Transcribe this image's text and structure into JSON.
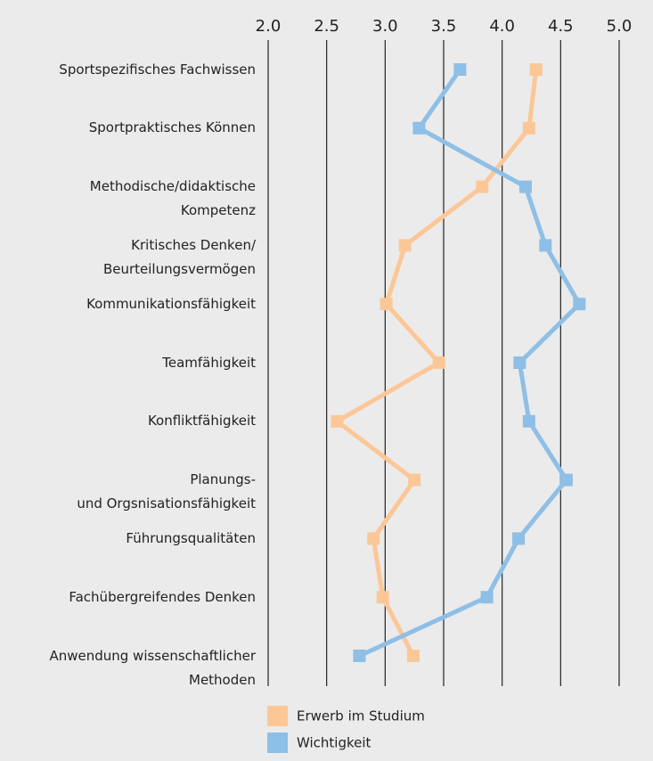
{
  "chart_data": {
    "type": "line",
    "orientation": "horizontal",
    "categories": [
      "Sportspezifisches Fachwissen",
      "Sportpraktisches Können",
      "Methodische/didaktische\nKompetenz",
      "Kritisches Denken/\nBeurteilungsvermögen",
      "Kommunikationsfähigkeit",
      "Teamfähigkeit",
      "Konfliktfähigkeit",
      "Planungs-\nund Orgsnisationsfähigkeit",
      "Führungsqualitäten",
      "Fachübergreifendes Denken",
      "Anwendung wissenschaftlicher\nMethoden"
    ],
    "series": [
      {
        "name": "Erwerb im Studium",
        "color": "#fcc797",
        "values": [
          4.29,
          4.23,
          3.83,
          3.17,
          3.01,
          3.46,
          2.59,
          3.25,
          2.9,
          2.98,
          3.24
        ]
      },
      {
        "name": "Wichtigkeit",
        "color": "#8ebfe6",
        "values": [
          3.64,
          3.29,
          4.2,
          4.37,
          4.66,
          4.15,
          4.23,
          4.55,
          4.14,
          3.87,
          2.78
        ]
      }
    ],
    "xlim": [
      2,
      5
    ],
    "xticks": [
      {
        "value": 2,
        "label": "2.0"
      },
      2.5,
      {
        "value": 3,
        "label": "3.0"
      },
      3.5,
      {
        "value": 4,
        "label": "4.0"
      },
      4.5,
      {
        "value": 5,
        "label": "5.0"
      }
    ],
    "grid": true
  }
}
